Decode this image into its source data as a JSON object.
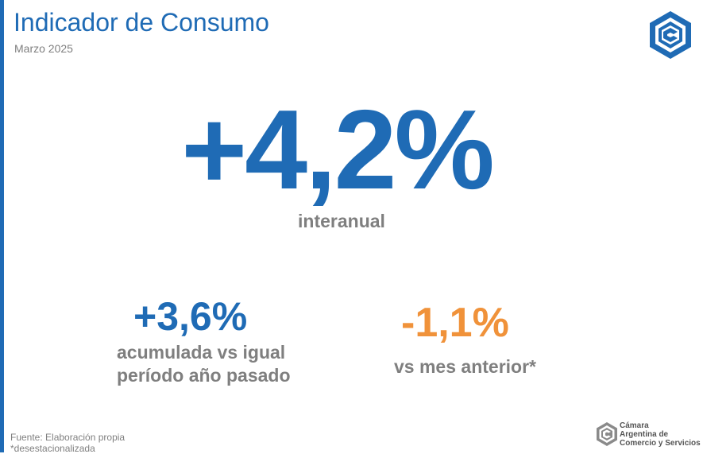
{
  "header": {
    "title": "Indicador de Consumo",
    "date": "Marzo 2025",
    "logo_icon": "cac-logo-icon"
  },
  "main": {
    "value": "+4,2%",
    "label": "interanual"
  },
  "secondary": [
    {
      "value": "+3,6%",
      "label_lines": [
        "acumulada vs igual",
        "período año pasado"
      ],
      "color": "#1f6bb5"
    },
    {
      "value": "-1,1%",
      "label": "vs mes anterior*",
      "color": "#f0923a"
    }
  ],
  "footer": {
    "source": "Fuente: Elaboración propia",
    "note": "*desestacionalizada",
    "org_lines": [
      "Cámara",
      "Argentina de",
      "Comercio y Servicios"
    ]
  },
  "colors": {
    "accent": "#1f6bb5",
    "secondary": "#f0923a",
    "muted": "#7f7f7f"
  }
}
